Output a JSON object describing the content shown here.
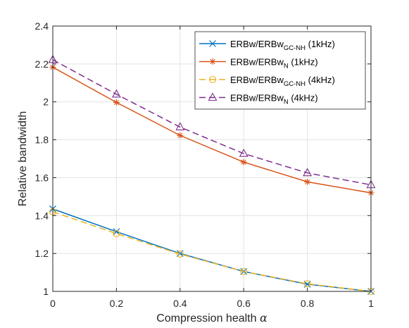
{
  "chart_data": {
    "type": "line",
    "x": [
      0,
      0.2,
      0.4,
      0.6,
      0.8,
      1
    ],
    "xlim": [
      0,
      1
    ],
    "ylim": [
      1,
      2.4
    ],
    "xticks": [
      "0",
      "0.2",
      "0.4",
      "0.6",
      "0.8",
      "1"
    ],
    "yticks": [
      "1",
      "1.2",
      "1.4",
      "1.6",
      "1.8",
      "2",
      "2.2",
      "2.4"
    ],
    "xlabel": "Compression health",
    "xlabel_symbol": "α",
    "ylabel": "Relative bandwidth",
    "grid": true,
    "legend_position": "top-right",
    "series": [
      {
        "name_main": "ERBw/ERBw",
        "name_sub": "GC-NH",
        "name_tail": " (1kHz)",
        "values": [
          1.435,
          1.315,
          1.2,
          1.105,
          1.038,
          1.0
        ],
        "color": "#0072BD",
        "dash": "solid",
        "marker": "x"
      },
      {
        "name_main": "ERBw/ERBw",
        "name_sub": "N",
        "name_tail": " (1kHz)",
        "values": [
          2.183,
          1.997,
          1.823,
          1.682,
          1.578,
          1.52
        ],
        "color": "#D95319",
        "dash": "solid",
        "marker": "star"
      },
      {
        "name_main": "ERBw/ERBw",
        "name_sub": "GC-NH",
        "name_tail": " (4kHz)",
        "values": [
          1.42,
          1.305,
          1.197,
          1.105,
          1.04,
          1.0
        ],
        "color": "#EDB120",
        "dash": "dashed",
        "marker": "circle"
      },
      {
        "name_main": "ERBw/ERBw",
        "name_sub": "N",
        "name_tail": " (4kHz)",
        "values": [
          2.222,
          2.04,
          1.867,
          1.727,
          1.625,
          1.562
        ],
        "color": "#7E2F8E",
        "dash": "dashed",
        "marker": "triangle"
      }
    ]
  }
}
